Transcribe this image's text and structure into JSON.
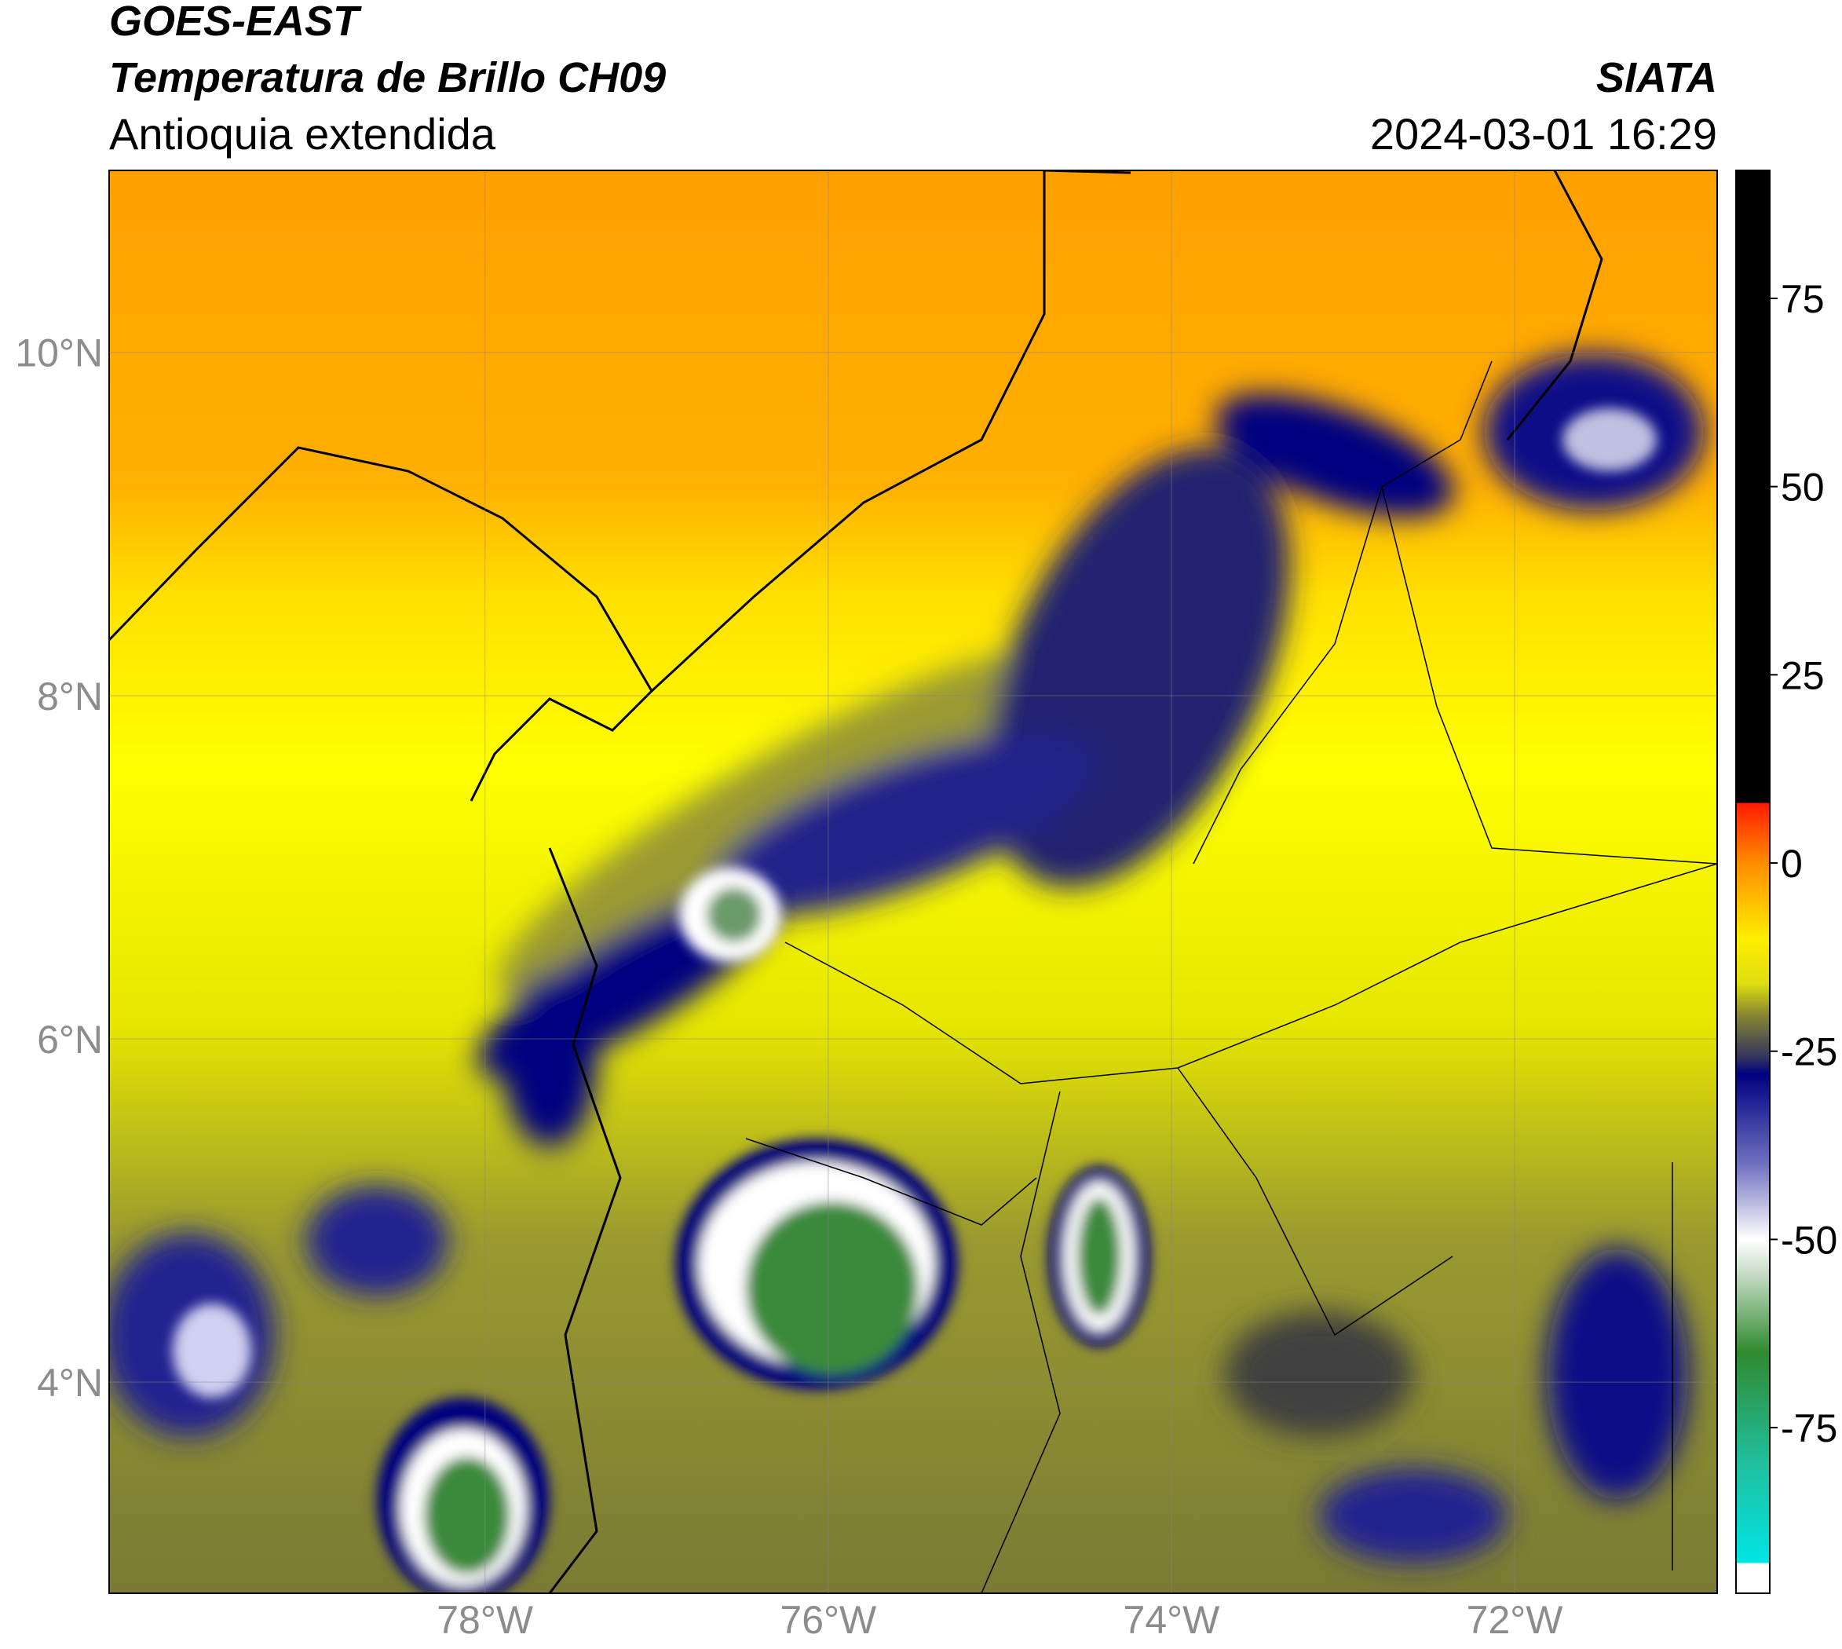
{
  "chart_data": {
    "type": "map",
    "title": "GOES-EAST",
    "subtitle": "Temperatura de Brillo CH09",
    "region": "Antioquia extendida",
    "source": "SIATA",
    "datetime": "2024-03-01 16:29",
    "xlim": [
      -80.19,
      -70.82
    ],
    "ylim": [
      2.77,
      11.06
    ],
    "xticks": [
      {
        "value": -78,
        "label": "78°W"
      },
      {
        "value": -76,
        "label": "76°W"
      },
      {
        "value": -74,
        "label": "74°W"
      },
      {
        "value": -72,
        "label": "72°W"
      }
    ],
    "yticks": [
      {
        "value": 4,
        "label": "4°N"
      },
      {
        "value": 6,
        "label": "6°N"
      },
      {
        "value": 8,
        "label": "8°N"
      },
      {
        "value": 10,
        "label": "10°N"
      }
    ],
    "grid": true,
    "colorbar": {
      "clim": [
        -97,
        92
      ],
      "ticks": [
        -75,
        -50,
        -25,
        0,
        25,
        50,
        75
      ],
      "colormap": [
        {
          "value": 92,
          "color": "#000000"
        },
        {
          "value": 8,
          "color": "#000000"
        },
        {
          "value": 8,
          "color": "#ff1a00"
        },
        {
          "value": 0,
          "color": "#ff8c00"
        },
        {
          "value": -10,
          "color": "#ffee00"
        },
        {
          "value": -16,
          "color": "#dede10"
        },
        {
          "value": -20,
          "color": "#8a8a30"
        },
        {
          "value": -26,
          "color": "#303060"
        },
        {
          "value": -28,
          "color": "#000080"
        },
        {
          "value": -40,
          "color": "#7070c0"
        },
        {
          "value": -50,
          "color": "#ffffff"
        },
        {
          "value": -55,
          "color": "#c0d8c0"
        },
        {
          "value": -65,
          "color": "#2f8a2f"
        },
        {
          "value": -80,
          "color": "#20c0a0"
        },
        {
          "value": -93,
          "color": "#00e5e5"
        },
        {
          "value": -93,
          "color": "#ffffff"
        },
        {
          "value": -97,
          "color": "#ffffff"
        }
      ]
    }
  }
}
